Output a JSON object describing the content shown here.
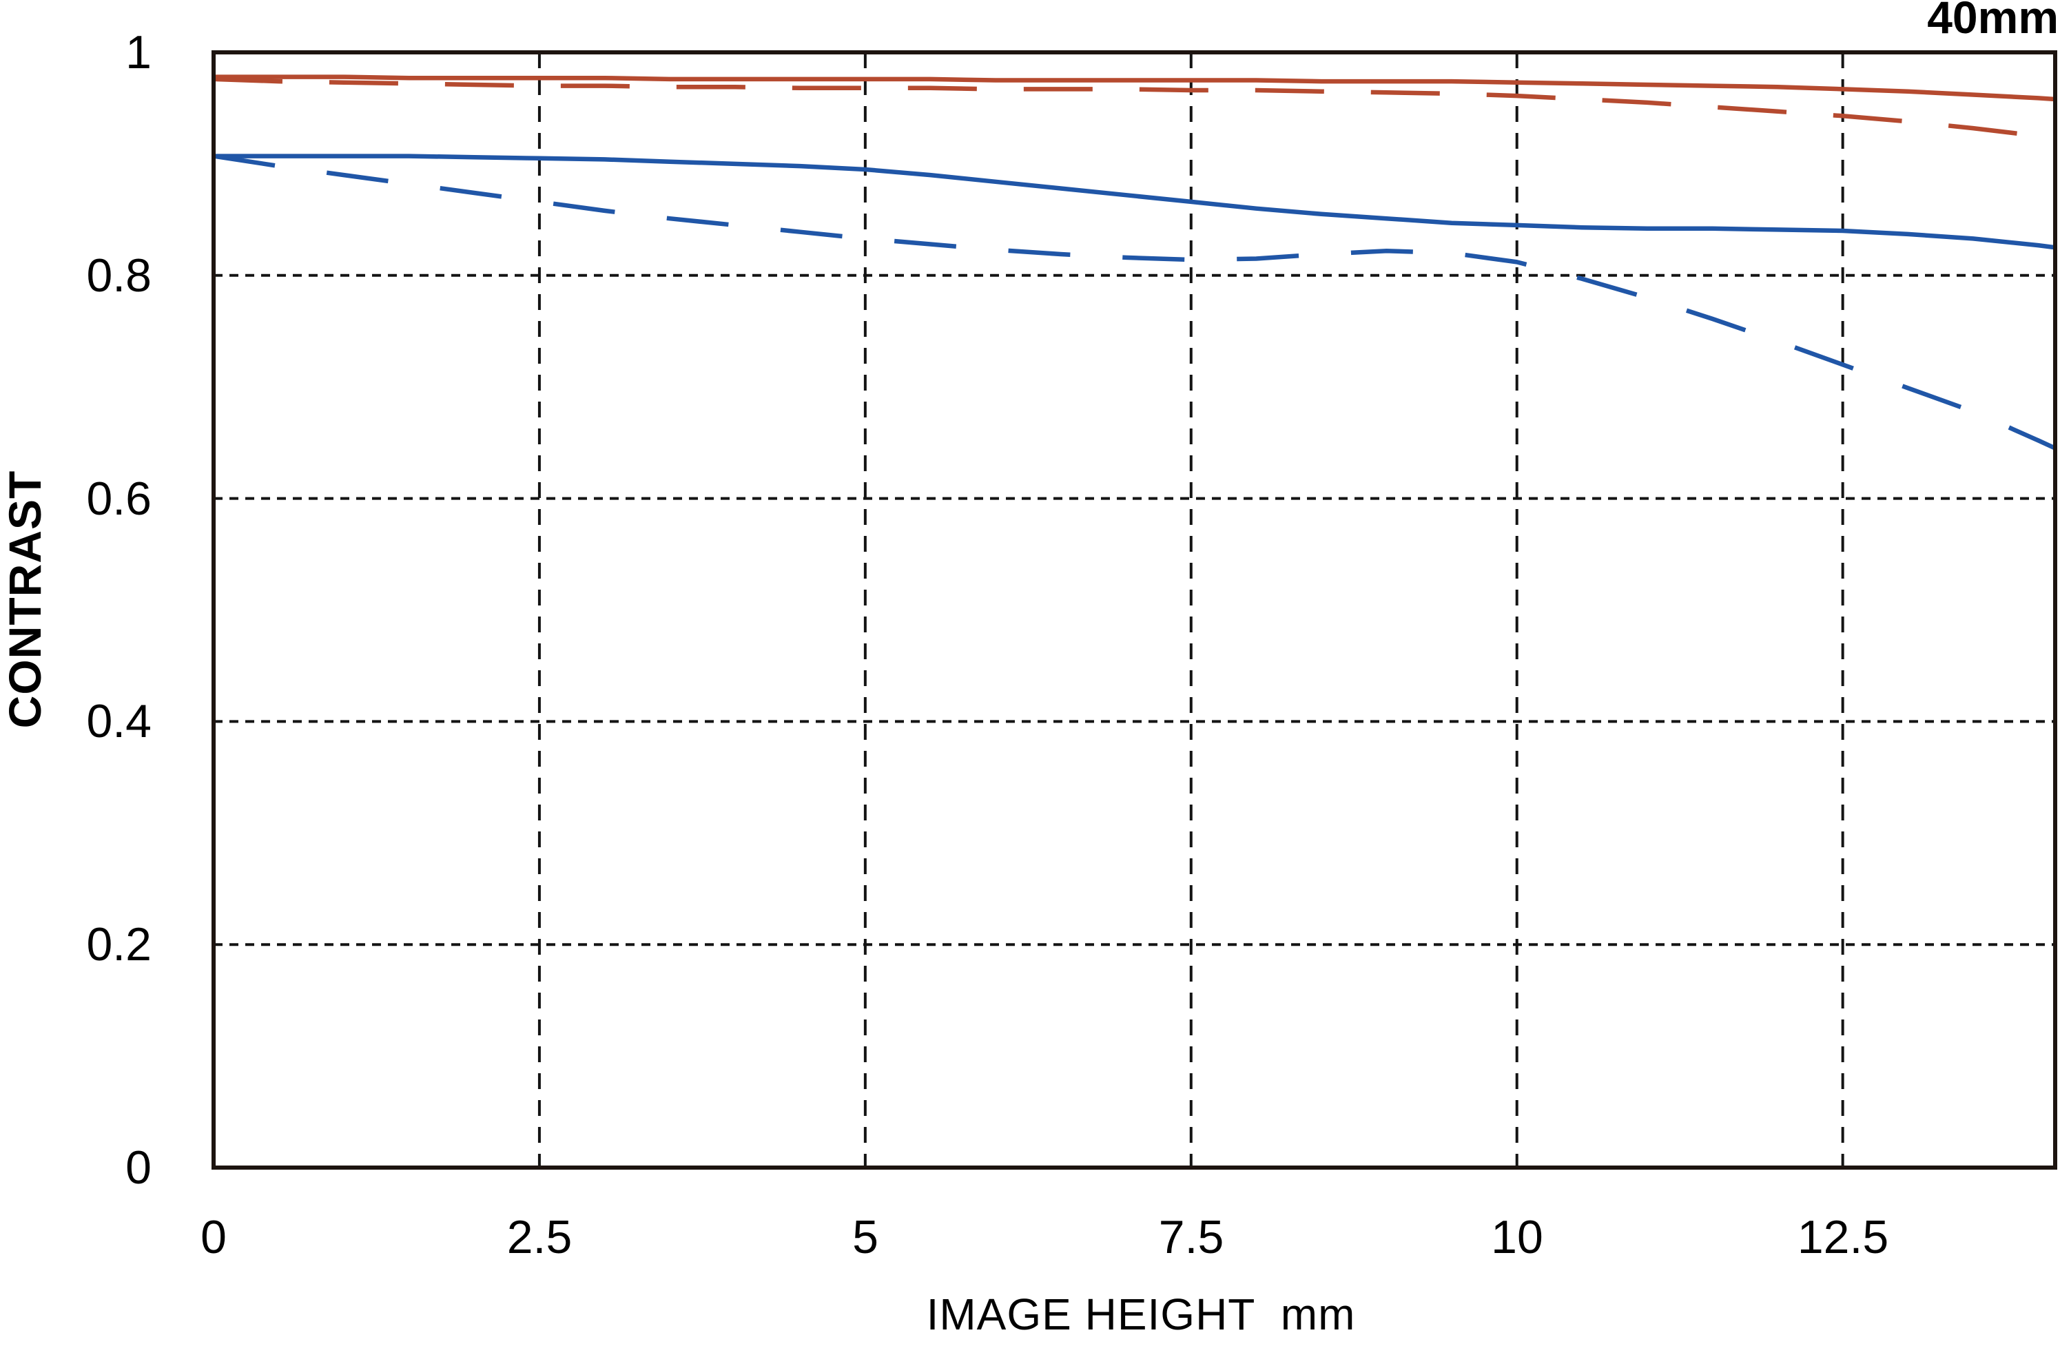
{
  "header": {
    "focal_length_label": "40mm"
  },
  "chart_data": {
    "type": "line",
    "title": "40mm",
    "xlabel": "IMAGE HEIGHT  mm",
    "ylabel": "CONTRAST",
    "xlim": [
      0,
      14.13
    ],
    "ylim": [
      0,
      1
    ],
    "xticks": [
      0,
      2.5,
      5,
      7.5,
      10,
      12.5
    ],
    "xtick_labels": [
      "0",
      "2.5",
      "5",
      "7.5",
      "10",
      "12.5"
    ],
    "yticks": [
      0,
      0.2,
      0.4,
      0.6,
      0.8,
      1
    ],
    "ytick_labels": [
      "0",
      "0.2",
      "0.4",
      "0.6",
      "0.8",
      "1"
    ],
    "grid": "dashed black gridlines at every tick, both axes; no gridline at 0 or 1 (covered by plot border)",
    "legend": "none",
    "x": [
      0,
      0.5,
      1,
      1.5,
      2,
      2.5,
      3,
      3.5,
      4,
      4.5,
      5,
      5.5,
      6,
      6.5,
      7,
      7.5,
      8,
      8.5,
      9,
      9.5,
      10,
      10.5,
      11,
      11.5,
      12,
      12.5,
      13,
      13.5,
      14,
      14.13
    ],
    "series": [
      {
        "name": "red-solid",
        "style": "solid",
        "color": "#b54a2f",
        "dash": null,
        "values": [
          0.978,
          0.978,
          0.978,
          0.977,
          0.977,
          0.977,
          0.977,
          0.976,
          0.976,
          0.976,
          0.976,
          0.976,
          0.975,
          0.975,
          0.975,
          0.975,
          0.975,
          0.974,
          0.974,
          0.974,
          0.973,
          0.972,
          0.971,
          0.97,
          0.969,
          0.967,
          0.965,
          0.962,
          0.959,
          0.958
        ]
      },
      {
        "name": "red-dashed",
        "style": "dashed",
        "color": "#b54a2f",
        "dash": [
          100,
          68
        ],
        "values": [
          0.976,
          0.974,
          0.973,
          0.972,
          0.971,
          0.97,
          0.97,
          0.969,
          0.969,
          0.968,
          0.968,
          0.968,
          0.967,
          0.967,
          0.967,
          0.966,
          0.966,
          0.965,
          0.964,
          0.963,
          0.961,
          0.958,
          0.955,
          0.951,
          0.947,
          0.943,
          0.938,
          0.932,
          0.925,
          0.923
        ]
      },
      {
        "name": "blue-solid",
        "style": "solid",
        "color": "#2056a7",
        "dash": null,
        "values": [
          0.907,
          0.907,
          0.907,
          0.907,
          0.906,
          0.905,
          0.904,
          0.902,
          0.9,
          0.898,
          0.895,
          0.89,
          0.884,
          0.878,
          0.872,
          0.866,
          0.86,
          0.855,
          0.851,
          0.847,
          0.845,
          0.843,
          0.842,
          0.842,
          0.841,
          0.84,
          0.837,
          0.833,
          0.827,
          0.825
        ]
      },
      {
        "name": "blue-dashed",
        "style": "dashed",
        "color": "#2056a7",
        "dash": [
          90,
          76
        ],
        "values": [
          0.907,
          0.898,
          0.89,
          0.882,
          0.874,
          0.866,
          0.858,
          0.851,
          0.845,
          0.839,
          0.833,
          0.828,
          0.823,
          0.819,
          0.816,
          0.814,
          0.815,
          0.819,
          0.822,
          0.82,
          0.812,
          0.797,
          0.78,
          0.761,
          0.741,
          0.72,
          0.699,
          0.678,
          0.652,
          0.645
        ]
      }
    ]
  },
  "colors": {
    "red_curve": "#b54a2f",
    "blue_curve": "#2056a7",
    "axis": "#1d1410",
    "grid": "#141414",
    "text": "#000000",
    "background": "#ffffff"
  }
}
